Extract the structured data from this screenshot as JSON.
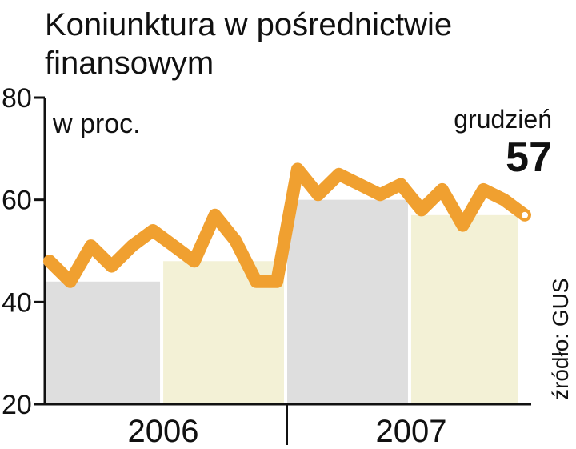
{
  "title": [
    "Koniunktura w pośrednictwie",
    "finansowym"
  ],
  "unit_label": "w proc.",
  "source": "źródło: GUS",
  "callout": {
    "label": "grudzień",
    "value": "57"
  },
  "colors": {
    "line": "#f0a030",
    "band_2006_h1": "#dedede",
    "band_2006_h2": "#f3f1d6",
    "band_2007_h1": "#dedede",
    "band_2007_h2": "#f3f1d6",
    "axis": "#111111"
  },
  "chart_data": {
    "type": "line",
    "ylim": [
      20,
      80
    ],
    "yticks": [
      "80",
      "60",
      "40",
      "20"
    ],
    "ytick_values": [
      80,
      60,
      40,
      20
    ],
    "years": [
      "2006",
      "2007"
    ],
    "series": [
      {
        "values": [
          48,
          44,
          51,
          47,
          51,
          54,
          51,
          48,
          57,
          52,
          44,
          44,
          66,
          61,
          65,
          63,
          61,
          63,
          58,
          62,
          55,
          62,
          60,
          57
        ]
      }
    ],
    "bands": [
      {
        "from": 0,
        "to": 5,
        "top": 44
      },
      {
        "from": 6,
        "to": 11,
        "top": 48
      },
      {
        "from": 12,
        "to": 17,
        "top": 60
      },
      {
        "from": 18,
        "to": 23,
        "top": 57
      }
    ],
    "grid": false,
    "legend": "none"
  }
}
